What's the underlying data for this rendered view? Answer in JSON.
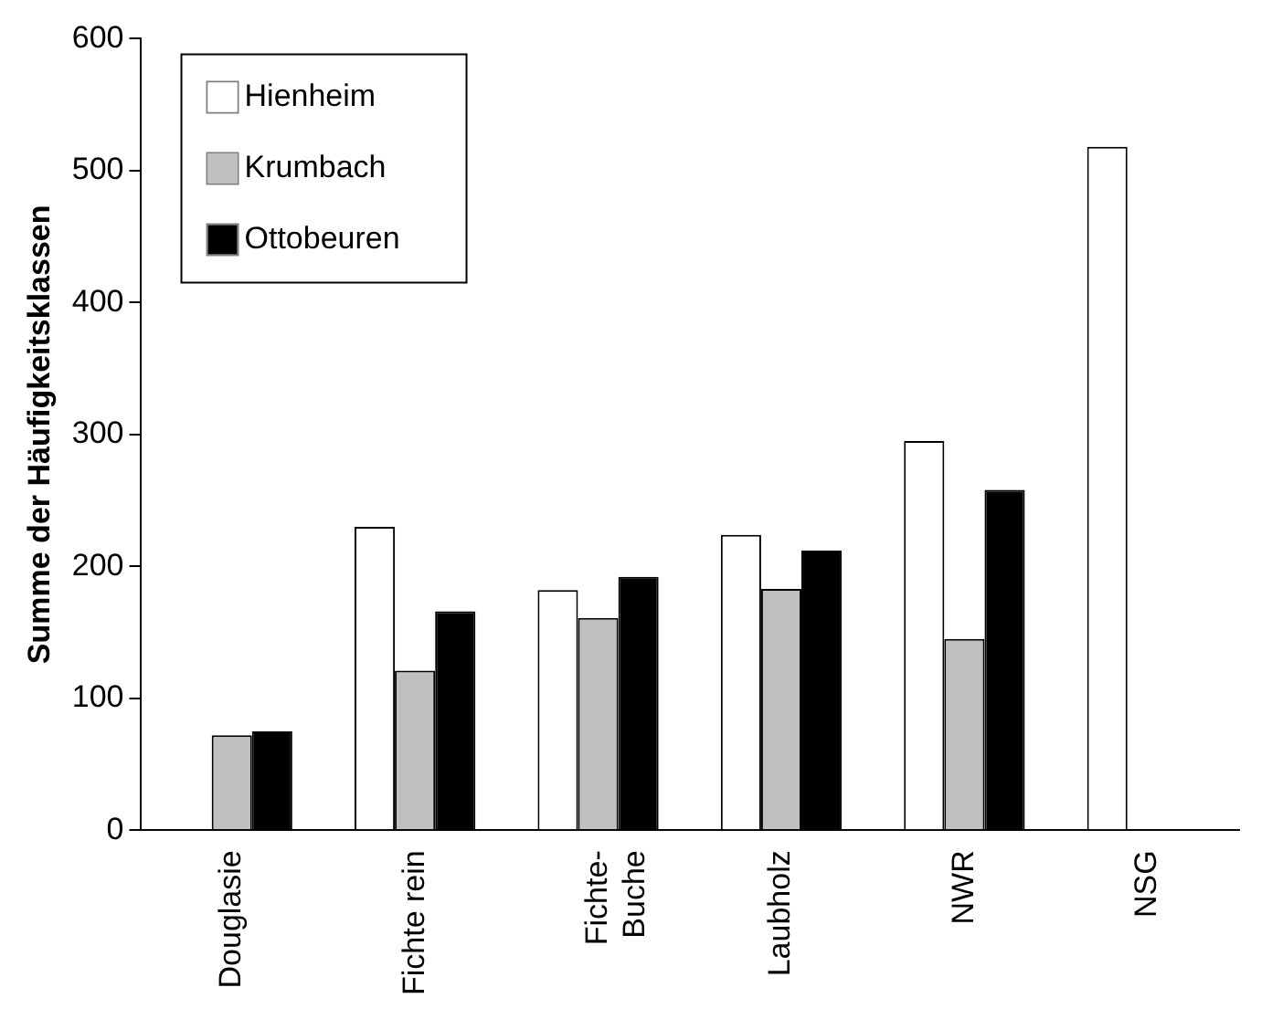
{
  "chart_data": {
    "type": "bar",
    "ylabel": "Summe der Häufigkeitsklassen",
    "categories": [
      "Douglasie",
      "Fichte rein",
      "Fichte-\nBuche",
      "Laubholz",
      "NWR",
      "NSG"
    ],
    "series": [
      {
        "name": "Hienheim",
        "color": "#ffffff",
        "values": [
          null,
          230,
          182,
          224,
          295,
          518
        ]
      },
      {
        "name": "Krumbach",
        "color": "#c0c0c0",
        "values": [
          72,
          121,
          161,
          183,
          145,
          null
        ]
      },
      {
        "name": "Ottobeuren",
        "color": "#000000",
        "values": [
          75,
          166,
          192,
          212,
          258,
          null
        ]
      }
    ],
    "ylim": [
      0,
      600
    ],
    "yticks": [
      0,
      100,
      200,
      300,
      400,
      500,
      600
    ],
    "grid": false,
    "legend": "top left"
  }
}
